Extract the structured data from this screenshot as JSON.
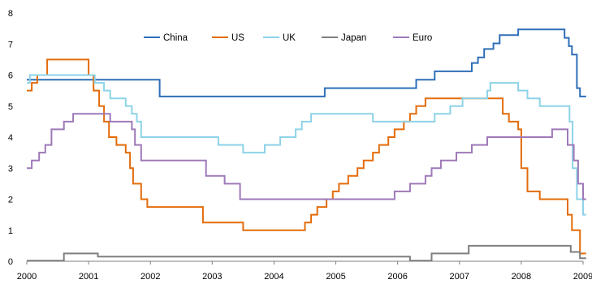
{
  "chart_data": {
    "type": "line",
    "title": "",
    "xlabel": "",
    "ylabel": "",
    "xlim": [
      2000,
      2009
    ],
    "ylim": [
      0,
      8
    ],
    "y_ticks": [
      "0",
      "1",
      "2",
      "3",
      "4",
      "5",
      "6",
      "7",
      "8"
    ],
    "x_ticks": [
      "2000",
      "2001",
      "2002",
      "2003",
      "2004",
      "2005",
      "2006",
      "2007",
      "2008",
      "2009"
    ],
    "legend_position": "top",
    "grid": false,
    "step": true,
    "series": [
      {
        "name": "China",
        "color": "#2E6FB7",
        "points": [
          [
            2000.0,
            5.85
          ],
          [
            2002.15,
            5.31
          ],
          [
            2004.82,
            5.58
          ],
          [
            2006.3,
            5.85
          ],
          [
            2006.6,
            6.12
          ],
          [
            2007.2,
            6.39
          ],
          [
            2007.3,
            6.57
          ],
          [
            2007.4,
            6.84
          ],
          [
            2007.55,
            7.02
          ],
          [
            2007.65,
            7.29
          ],
          [
            2007.95,
            7.47
          ],
          [
            2008.7,
            7.2
          ],
          [
            2008.77,
            6.93
          ],
          [
            2008.82,
            6.66
          ],
          [
            2008.9,
            5.58
          ],
          [
            2008.95,
            5.31
          ],
          [
            2009.05,
            5.31
          ]
        ]
      },
      {
        "name": "US",
        "color": "#E36C0A",
        "points": [
          [
            2000.0,
            5.5
          ],
          [
            2000.08,
            5.75
          ],
          [
            2000.17,
            6.0
          ],
          [
            2000.33,
            6.5
          ],
          [
            2001.0,
            6.0
          ],
          [
            2001.08,
            5.5
          ],
          [
            2001.17,
            5.0
          ],
          [
            2001.25,
            4.5
          ],
          [
            2001.33,
            4.0
          ],
          [
            2001.45,
            3.75
          ],
          [
            2001.6,
            3.5
          ],
          [
            2001.67,
            3.0
          ],
          [
            2001.72,
            2.5
          ],
          [
            2001.85,
            2.0
          ],
          [
            2001.95,
            1.75
          ],
          [
            2002.85,
            1.25
          ],
          [
            2003.5,
            1.0
          ],
          [
            2004.5,
            1.25
          ],
          [
            2004.6,
            1.5
          ],
          [
            2004.7,
            1.75
          ],
          [
            2004.85,
            2.0
          ],
          [
            2004.95,
            2.25
          ],
          [
            2005.05,
            2.5
          ],
          [
            2005.2,
            2.75
          ],
          [
            2005.35,
            3.0
          ],
          [
            2005.45,
            3.25
          ],
          [
            2005.6,
            3.5
          ],
          [
            2005.7,
            3.75
          ],
          [
            2005.85,
            4.0
          ],
          [
            2005.95,
            4.25
          ],
          [
            2006.1,
            4.5
          ],
          [
            2006.2,
            4.75
          ],
          [
            2006.3,
            5.0
          ],
          [
            2006.45,
            5.25
          ],
          [
            2007.7,
            4.75
          ],
          [
            2007.8,
            4.5
          ],
          [
            2007.95,
            4.25
          ],
          [
            2008.0,
            3.0
          ],
          [
            2008.1,
            2.25
          ],
          [
            2008.3,
            2.0
          ],
          [
            2008.75,
            1.5
          ],
          [
            2008.82,
            1.0
          ],
          [
            2008.95,
            0.25
          ],
          [
            2009.05,
            0.25
          ]
        ]
      },
      {
        "name": "UK",
        "color": "#8DD3E8",
        "points": [
          [
            2000.0,
            5.75
          ],
          [
            2000.05,
            6.0
          ],
          [
            2001.1,
            5.75
          ],
          [
            2001.25,
            5.5
          ],
          [
            2001.35,
            5.25
          ],
          [
            2001.6,
            5.0
          ],
          [
            2001.7,
            4.75
          ],
          [
            2001.78,
            4.5
          ],
          [
            2001.85,
            4.0
          ],
          [
            2003.1,
            3.75
          ],
          [
            2003.5,
            3.5
          ],
          [
            2003.85,
            3.75
          ],
          [
            2004.1,
            4.0
          ],
          [
            2004.35,
            4.25
          ],
          [
            2004.45,
            4.5
          ],
          [
            2004.6,
            4.75
          ],
          [
            2005.6,
            4.5
          ],
          [
            2006.6,
            4.75
          ],
          [
            2006.85,
            5.0
          ],
          [
            2007.05,
            5.25
          ],
          [
            2007.45,
            5.5
          ],
          [
            2007.5,
            5.75
          ],
          [
            2007.95,
            5.5
          ],
          [
            2008.1,
            5.25
          ],
          [
            2008.3,
            5.0
          ],
          [
            2008.78,
            4.5
          ],
          [
            2008.83,
            3.0
          ],
          [
            2008.9,
            2.0
          ],
          [
            2009.0,
            1.5
          ],
          [
            2009.05,
            1.5
          ]
        ]
      },
      {
        "name": "Japan",
        "color": "#7F7F7F",
        "points": [
          [
            2000.0,
            0.02
          ],
          [
            2000.6,
            0.25
          ],
          [
            2001.15,
            0.15
          ],
          [
            2006.2,
            0.02
          ],
          [
            2006.55,
            0.25
          ],
          [
            2007.15,
            0.5
          ],
          [
            2008.8,
            0.3
          ],
          [
            2008.95,
            0.1
          ],
          [
            2009.05,
            0.1
          ]
        ]
      },
      {
        "name": "Euro",
        "color": "#9E79B8",
        "points": [
          [
            2000.0,
            3.0
          ],
          [
            2000.08,
            3.25
          ],
          [
            2000.2,
            3.5
          ],
          [
            2000.3,
            3.75
          ],
          [
            2000.4,
            4.25
          ],
          [
            2000.6,
            4.5
          ],
          [
            2000.75,
            4.75
          ],
          [
            2001.35,
            4.5
          ],
          [
            2001.7,
            4.25
          ],
          [
            2001.75,
            3.75
          ],
          [
            2001.85,
            3.25
          ],
          [
            2002.9,
            2.75
          ],
          [
            2003.2,
            2.5
          ],
          [
            2003.45,
            2.0
          ],
          [
            2005.95,
            2.25
          ],
          [
            2006.2,
            2.5
          ],
          [
            2006.45,
            2.75
          ],
          [
            2006.55,
            3.0
          ],
          [
            2006.7,
            3.25
          ],
          [
            2006.95,
            3.5
          ],
          [
            2007.2,
            3.75
          ],
          [
            2007.45,
            4.0
          ],
          [
            2008.5,
            4.25
          ],
          [
            2008.75,
            3.75
          ],
          [
            2008.85,
            3.25
          ],
          [
            2008.92,
            2.5
          ],
          [
            2009.0,
            2.0
          ],
          [
            2009.05,
            2.0
          ]
        ]
      }
    ]
  }
}
